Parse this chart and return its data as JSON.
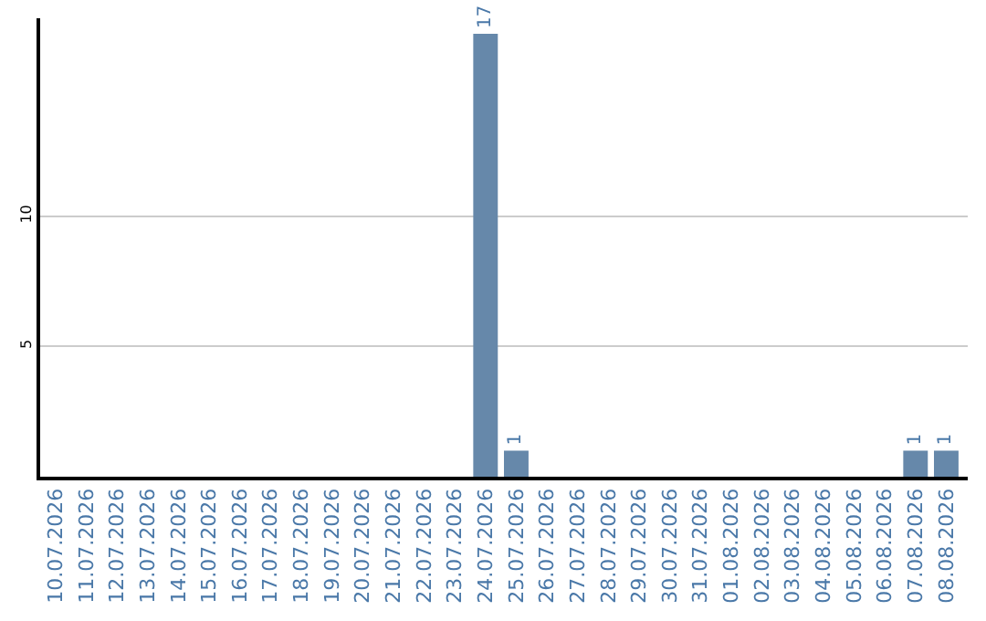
{
  "chart_data": {
    "type": "bar",
    "categories": [
      "10.07.2026",
      "11.07.2026",
      "12.07.2026",
      "13.07.2026",
      "14.07.2026",
      "15.07.2026",
      "16.07.2026",
      "17.07.2026",
      "18.07.2026",
      "19.07.2026",
      "20.07.2026",
      "21.07.2026",
      "22.07.2026",
      "23.07.2026",
      "24.07.2026",
      "25.07.2026",
      "26.07.2026",
      "27.07.2026",
      "28.07.2026",
      "29.07.2026",
      "30.07.2026",
      "31.07.2026",
      "01.08.2026",
      "02.08.2026",
      "03.08.2026",
      "04.08.2026",
      "05.08.2026",
      "06.08.2026",
      "07.08.2026",
      "08.08.2026"
    ],
    "values": [
      0,
      0,
      0,
      0,
      0,
      0,
      0,
      0,
      0,
      0,
      0,
      0,
      0,
      0,
      17,
      1,
      0,
      0,
      0,
      0,
      0,
      0,
      0,
      0,
      0,
      0,
      0,
      0,
      1,
      1
    ],
    "value_labels": [
      null,
      null,
      null,
      null,
      null,
      null,
      null,
      null,
      null,
      null,
      null,
      null,
      null,
      null,
      "17",
      "1",
      null,
      null,
      null,
      null,
      null,
      null,
      null,
      null,
      null,
      null,
      null,
      null,
      "1",
      "1"
    ],
    "color": "#6688aa",
    "ylim": [
      0,
      17.6
    ],
    "yticks": [
      5,
      10
    ],
    "grid": "y",
    "legend": false
  }
}
